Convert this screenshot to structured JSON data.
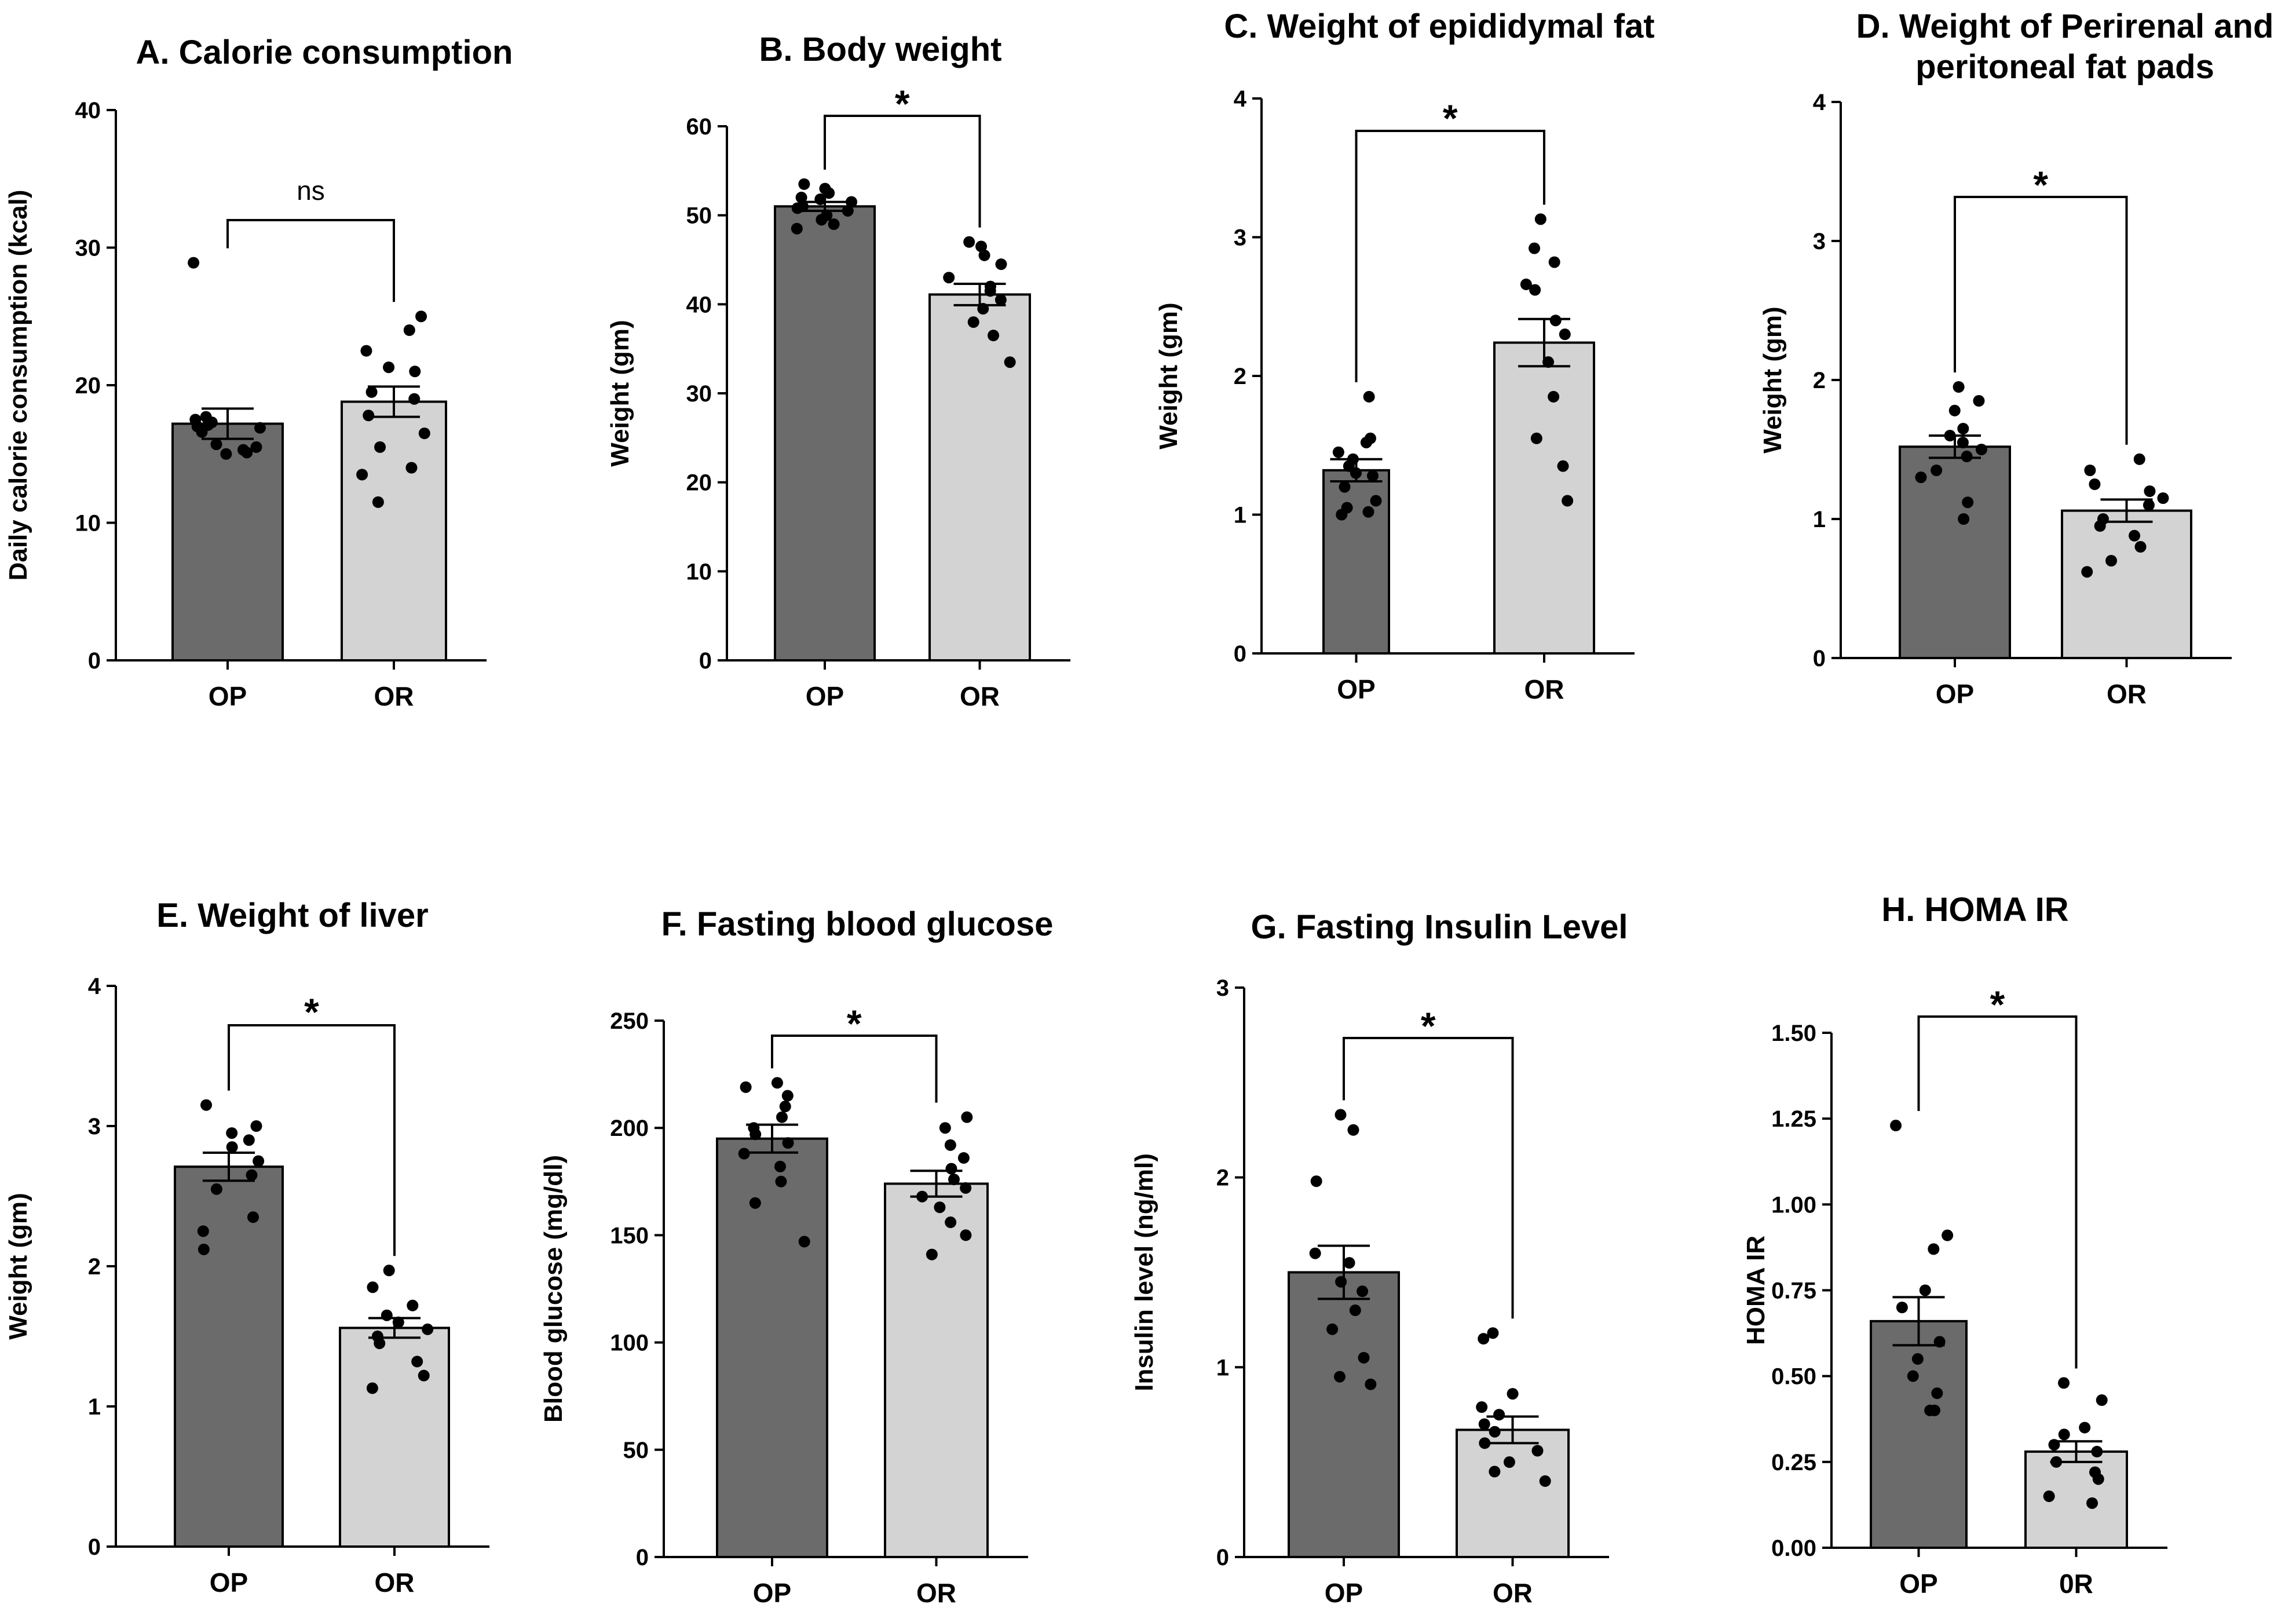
{
  "chart_data": [
    {
      "type": "bar",
      "title_prefix": "A.",
      "title": "Calorie consumption",
      "title_lines": [
        "Calorie consumption"
      ],
      "ylabel": "Daily calorie consumption (kcal)",
      "ylim": [
        0,
        40
      ],
      "yticks": [
        "0",
        "10",
        "20",
        "30",
        "40"
      ],
      "categories": [
        "OP",
        "OR"
      ],
      "values": [
        17.2,
        18.8
      ],
      "sem": [
        1.1,
        1.1
      ],
      "colors": [
        "#6b6b6b",
        "#d3d3d3"
      ],
      "points": [
        [
          28.9,
          17.7,
          17.5,
          17.3,
          17.1,
          17.0,
          16.9,
          16.6,
          15.7,
          15.5,
          15.3,
          15.1,
          15.0
        ],
        [
          25.0,
          24.0,
          22.5,
          21.3,
          21.0,
          19.5,
          19.0,
          17.8,
          16.5,
          15.5,
          14.0,
          13.5,
          11.5
        ]
      ],
      "significance": "ns"
    },
    {
      "type": "bar",
      "title_prefix": "B.",
      "title": "Body weight",
      "title_lines": [
        "Body weight"
      ],
      "ylabel": "Weight (gm)",
      "ylim": [
        0,
        60
      ],
      "yticks": [
        "0",
        "10",
        "20",
        "30",
        "40",
        "50",
        "60"
      ],
      "categories": [
        "OP",
        "OR"
      ],
      "values": [
        51.0,
        41.1
      ],
      "sem": [
        0.5,
        1.2
      ],
      "colors": [
        "#6b6b6b",
        "#d3d3d3"
      ],
      "points": [
        [
          53.5,
          53.0,
          52.5,
          52.0,
          51.8,
          51.5,
          51.0,
          50.8,
          50.5,
          50.0,
          49.5,
          49.0,
          48.5
        ],
        [
          47.0,
          46.5,
          45.5,
          44.5,
          43.0,
          42.0,
          41.5,
          40.5,
          39.5,
          38.0,
          36.5,
          33.5
        ]
      ],
      "significance": "*"
    },
    {
      "type": "bar",
      "title_prefix": "C.",
      "title": "Weight of epididymal fat",
      "title_lines": [
        "Weight of epididymal fat"
      ],
      "ylabel": "Weight (gm)",
      "ylim": [
        0,
        4
      ],
      "yticks": [
        "0",
        "1",
        "2",
        "3",
        "4"
      ],
      "categories": [
        "OP",
        "OR"
      ],
      "values": [
        1.32,
        2.24
      ],
      "sem": [
        0.08,
        0.17
      ],
      "colors": [
        "#6b6b6b",
        "#d3d3d3"
      ],
      "points": [
        [
          1.85,
          1.55,
          1.52,
          1.45,
          1.4,
          1.35,
          1.3,
          1.28,
          1.2,
          1.1,
          1.05,
          1.02,
          1.0
        ],
        [
          3.13,
          2.92,
          2.82,
          2.66,
          2.62,
          2.4,
          2.3,
          2.1,
          1.85,
          1.55,
          1.35,
          1.1
        ]
      ],
      "significance": "*"
    },
    {
      "type": "bar",
      "title_prefix": "D.",
      "title": "Weight of Perirenal and peritoneal fat pads",
      "title_lines": [
        "Weight of Perirenal and",
        "peritoneal fat pads"
      ],
      "ylabel": "Weight (gm)",
      "ylim": [
        0,
        4
      ],
      "yticks": [
        "0",
        "1",
        "2",
        "3",
        "4"
      ],
      "categories": [
        "OP",
        "OR"
      ],
      "values": [
        1.52,
        1.06
      ],
      "sem": [
        0.08,
        0.08
      ],
      "colors": [
        "#6b6b6b",
        "#d3d3d3"
      ],
      "points": [
        [
          1.95,
          1.85,
          1.78,
          1.65,
          1.6,
          1.55,
          1.5,
          1.45,
          1.35,
          1.3,
          1.12,
          1.0
        ],
        [
          1.43,
          1.35,
          1.25,
          1.2,
          1.15,
          1.1,
          1.0,
          0.95,
          0.88,
          0.8,
          0.7,
          0.62
        ]
      ],
      "significance": "*"
    },
    {
      "type": "bar",
      "title_prefix": "E.",
      "title": "Weight of liver",
      "title_lines": [
        "Weight of liver"
      ],
      "ylabel": "Weight (gm)",
      "ylim": [
        0,
        4
      ],
      "yticks": [
        "0",
        "1",
        "2",
        "3",
        "4"
      ],
      "categories": [
        "OP",
        "OR"
      ],
      "values": [
        2.71,
        1.56
      ],
      "sem": [
        0.1,
        0.07
      ],
      "colors": [
        "#6b6b6b",
        "#d3d3d3"
      ],
      "points": [
        [
          3.15,
          3.0,
          2.95,
          2.9,
          2.85,
          2.75,
          2.65,
          2.55,
          2.35,
          2.25,
          2.12
        ],
        [
          1.97,
          1.85,
          1.72,
          1.65,
          1.6,
          1.55,
          1.5,
          1.45,
          1.32,
          1.22,
          1.13
        ]
      ],
      "significance": "*"
    },
    {
      "type": "bar",
      "title_prefix": "F.",
      "title": "Fasting blood glucose",
      "title_lines": [
        "Fasting blood glucose"
      ],
      "ylabel": "Blood glucose (mg/dl)",
      "ylim": [
        0,
        250
      ],
      "yticks": [
        "0",
        "50",
        "100",
        "150",
        "200",
        "250"
      ],
      "categories": [
        "OP",
        "OR"
      ],
      "values": [
        195,
        174
      ],
      "sem": [
        6.5,
        6.0
      ],
      "colors": [
        "#6b6b6b",
        "#d3d3d3"
      ],
      "points": [
        [
          221,
          219,
          215,
          210,
          205,
          200,
          197,
          193,
          188,
          182,
          175,
          165,
          147
        ],
        [
          205,
          200,
          192,
          186,
          181,
          176,
          172,
          168,
          163,
          156,
          150,
          141
        ]
      ],
      "significance": "*"
    },
    {
      "type": "bar",
      "title_prefix": "G.",
      "title": "Fasting Insulin Level",
      "title_lines": [
        "Fasting Insulin Level"
      ],
      "ylabel": "Insulin level (ng/ml)",
      "ylim": [
        0,
        3
      ],
      "yticks": [
        "0",
        "1",
        "2",
        "3"
      ],
      "categories": [
        "OP",
        "OR"
      ],
      "values": [
        1.5,
        0.67
      ],
      "sem": [
        0.14,
        0.07
      ],
      "colors": [
        "#6b6b6b",
        "#d3d3d3"
      ],
      "points": [
        [
          2.33,
          2.25,
          1.98,
          1.6,
          1.55,
          1.45,
          1.4,
          1.3,
          1.2,
          1.05,
          0.95,
          0.91
        ],
        [
          1.18,
          1.15,
          0.86,
          0.79,
          0.75,
          0.7,
          0.66,
          0.6,
          0.56,
          0.5,
          0.45,
          0.4
        ]
      ],
      "significance": "*"
    },
    {
      "type": "bar",
      "title_prefix": "H.",
      "title": "HOMA IR",
      "title_lines": [
        "HOMA IR"
      ],
      "ylabel": "HOMA IR",
      "ylim": [
        0,
        1.5
      ],
      "yticks": [
        "0.00",
        "0.25",
        "0.50",
        "0.75",
        "1.00",
        "1.25",
        "1.50"
      ],
      "categories": [
        "OP",
        "0R"
      ],
      "values": [
        0.66,
        0.28
      ],
      "sem": [
        0.07,
        0.03
      ],
      "colors": [
        "#6b6b6b",
        "#d3d3d3"
      ],
      "points": [
        [
          1.23,
          0.91,
          0.87,
          0.75,
          0.7,
          0.6,
          0.55,
          0.5,
          0.45,
          0.4,
          0.4
        ],
        [
          0.48,
          0.43,
          0.35,
          0.33,
          0.3,
          0.28,
          0.25,
          0.22,
          0.2,
          0.15,
          0.13
        ]
      ],
      "significance": "*"
    }
  ]
}
